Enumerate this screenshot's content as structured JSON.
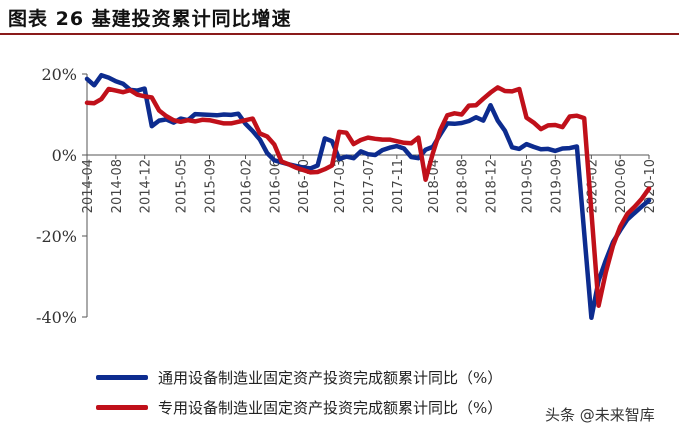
{
  "header": {
    "title": "图表 26  基建投资累计同比增速"
  },
  "watermark": {
    "logo": "头条",
    "handle": "@未来智库"
  },
  "colors": {
    "series1": "#0d2c8f",
    "series2": "#c0101a",
    "axis": "#555555"
  },
  "chart_data": {
    "type": "line",
    "title": "",
    "xlabel": "",
    "ylabel": "",
    "ylim": [
      -40,
      20
    ],
    "yticks": [
      20,
      0,
      -20,
      -40
    ],
    "ytick_labels": [
      "20%",
      "0%",
      "-20%",
      "-40%"
    ],
    "grid": false,
    "legend_position": "bottom",
    "x": [
      "2014-04",
      "2014-05",
      "2014-06",
      "2014-07",
      "2014-08",
      "2014-09",
      "2014-10",
      "2014-11",
      "2014-12",
      "2015-01",
      "2015-02",
      "2015-03",
      "2015-04",
      "2015-05",
      "2015-06",
      "2015-07",
      "2015-08",
      "2015-09",
      "2015-10",
      "2015-11",
      "2015-12",
      "2016-01",
      "2016-02",
      "2016-03",
      "2016-04",
      "2016-05",
      "2016-06",
      "2016-07",
      "2016-08",
      "2016-09",
      "2016-10",
      "2016-11",
      "2016-12",
      "2017-01",
      "2017-02",
      "2017-03",
      "2017-04",
      "2017-05",
      "2017-06",
      "2017-07",
      "2017-08",
      "2017-09",
      "2017-10",
      "2017-11",
      "2017-12",
      "2018-01",
      "2018-02",
      "2018-03",
      "2018-04",
      "2018-05",
      "2018-06",
      "2018-07",
      "2018-08",
      "2018-09",
      "2018-10",
      "2018-11",
      "2018-12",
      "2019-01",
      "2019-02",
      "2019-03",
      "2019-04",
      "2019-05",
      "2019-06",
      "2019-07",
      "2019-08",
      "2019-09",
      "2019-10",
      "2019-11",
      "2019-12",
      "2020-01",
      "2020-02",
      "2020-03",
      "2020-04",
      "2020-05",
      "2020-06",
      "2020-07",
      "2020-08",
      "2020-09",
      "2020-10"
    ],
    "xtick_labels": [
      "2014-04",
      "2014-08",
      "2014-12",
      "2015-05",
      "2015-09",
      "2016-02",
      "2016-06",
      "2016-10",
      "2017-03",
      "2017-07",
      "2017-11",
      "2018-04",
      "2018-08",
      "2018-12",
      "2019-05",
      "2019-09",
      "2020-02",
      "2020-06",
      "2020-10"
    ],
    "series": [
      {
        "name": "通用设备制造业固定资产投资完成额累计同比（%）",
        "values": [
          18.8,
          17.2,
          19.7,
          19.1,
          18.2,
          17.6,
          16.1,
          15.9,
          16.4,
          7.1,
          8.5,
          8.8,
          8.0,
          9.0,
          8.6,
          10.1,
          10.0,
          9.9,
          9.8,
          10.0,
          9.9,
          10.2,
          7.7,
          5.9,
          3.8,
          0.5,
          -1.3,
          -1.8,
          -2.3,
          -2.7,
          -3.1,
          -3.3,
          -2.6,
          4.1,
          3.4,
          -1.0,
          -0.4,
          -0.8,
          0.9,
          0.2,
          0.0,
          1.2,
          1.8,
          2.2,
          1.6,
          -0.5,
          -0.8,
          1.3,
          2.0,
          5.0,
          7.8,
          7.7,
          7.9,
          8.4,
          9.3,
          8.5,
          12.3,
          8.5,
          6.0,
          1.9,
          1.5,
          2.7,
          2.0,
          1.4,
          1.5,
          1.0,
          1.6,
          1.7,
          2.1,
          null,
          -40.2,
          -31.0,
          -26.0,
          -21.5,
          -18.6,
          -15.9,
          -14.3,
          -12.7,
          -11.2
        ]
      },
      {
        "name": "专用设备制造业固定资产投资完成额累计同比（%）",
        "values": [
          12.9,
          12.8,
          13.8,
          16.3,
          15.9,
          15.5,
          16.0,
          14.9,
          14.5,
          14.2,
          11.0,
          9.6,
          8.6,
          8.2,
          8.6,
          8.3,
          8.7,
          8.6,
          8.2,
          7.8,
          7.8,
          8.2,
          8.6,
          9.0,
          5.3,
          4.6,
          2.6,
          -1.6,
          -2.3,
          -3.1,
          -3.7,
          -4.3,
          -4.2,
          -3.5,
          -2.6,
          5.7,
          5.5,
          2.7,
          3.7,
          4.3,
          4.0,
          3.8,
          3.8,
          3.4,
          3.0,
          2.9,
          4.3,
          -6.1,
          0.4,
          6.1,
          9.8,
          10.3,
          10.0,
          12.2,
          12.3,
          13.9,
          15.4,
          16.7,
          15.8,
          15.7,
          16.3,
          9.2,
          8.0,
          6.4,
          7.3,
          7.4,
          6.9,
          9.5,
          9.7,
          9.1,
          null,
          -37.2,
          -29.0,
          -22.4,
          -17.7,
          -14.5,
          -12.8,
          -10.8,
          -8.3
        ]
      }
    ]
  }
}
